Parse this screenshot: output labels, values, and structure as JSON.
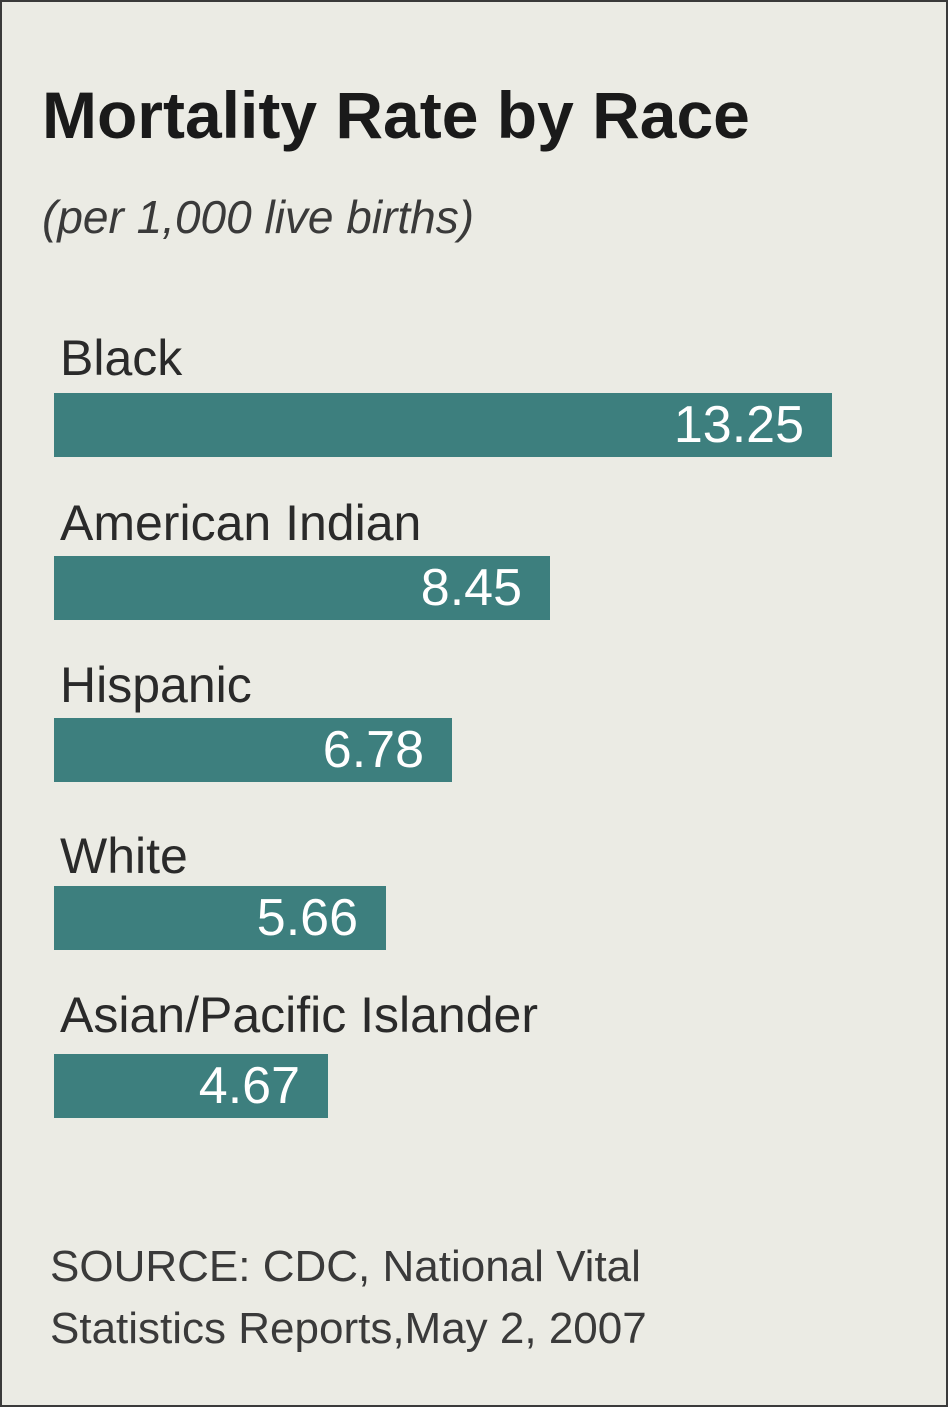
{
  "chart_data": {
    "type": "bar",
    "orientation": "horizontal",
    "title": "Mortality Rate by Race",
    "subtitle": "(per 1,000 live births)",
    "categories": [
      "Black",
      "American Indian",
      "Hispanic",
      "White",
      "Asian/Pacific Islander"
    ],
    "values": [
      13.25,
      8.45,
      6.78,
      5.66,
      4.67
    ],
    "value_labels": [
      "13.25",
      "8.45",
      "6.78",
      "5.66",
      "4.67"
    ],
    "xlim": [
      0,
      13.25
    ],
    "grid": false,
    "bar_color": "#3d7f7e"
  },
  "source": {
    "line1": "SOURCE: CDC, National Vital",
    "line2": "Statistics Reports,May 2, 2007"
  },
  "colors": {
    "background": "#ebebe4",
    "bar": "#3d7f7e",
    "value_text": "#ffffff",
    "title_text": "#1a1a1a"
  }
}
